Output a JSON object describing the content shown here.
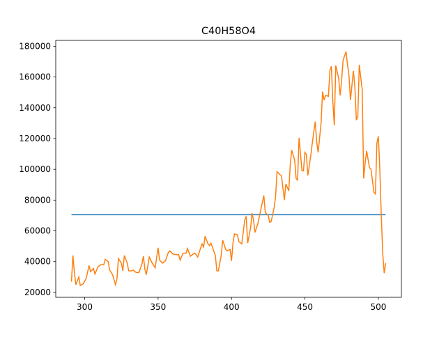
{
  "chart_data": {
    "type": "line",
    "title": "C40H58O4",
    "xlim": [
      280.3,
      515.7
    ],
    "xticks": [
      300,
      350,
      400,
      450,
      500
    ],
    "ylim": [
      16800,
      183800
    ],
    "yticks": [
      20000,
      40000,
      60000,
      80000,
      100000,
      120000,
      140000,
      160000,
      180000
    ],
    "grid": false,
    "series": [
      {
        "color": "#1f77b4",
        "x": [
          291,
          505
        ],
        "values": [
          70500,
          70500
        ]
      },
      {
        "color": "#ff7f0e",
        "x": [
          291,
          292,
          293,
          294,
          296,
          297,
          299,
          301,
          303,
          304,
          306,
          307,
          309,
          311,
          313,
          314,
          316,
          317,
          319,
          321,
          322,
          323,
          325,
          326,
          327,
          329,
          330,
          332,
          333,
          335,
          337,
          339,
          340,
          341,
          342,
          344,
          346,
          348,
          350,
          351,
          353,
          355,
          357,
          358,
          360,
          362,
          364,
          365,
          367,
          369,
          370,
          372,
          374,
          375,
          377,
          379,
          380,
          381,
          382,
          384,
          385,
          386,
          389,
          390,
          391,
          393,
          394,
          396,
          397,
          399,
          400,
          401,
          402,
          404,
          405,
          407,
          409,
          410,
          411,
          413,
          414,
          415,
          416,
          418,
          420,
          422,
          423,
          425,
          426,
          427,
          429,
          430,
          431,
          433,
          434,
          435,
          436,
          437,
          439,
          440,
          441,
          443,
          444,
          445,
          446,
          448,
          449,
          450,
          451,
          452,
          454,
          455,
          457,
          458,
          459,
          461,
          462,
          463,
          464,
          466,
          467,
          468,
          469,
          470,
          471,
          473,
          474,
          475,
          476,
          478,
          479,
          480,
          481,
          483,
          484,
          485,
          486,
          487,
          489,
          490,
          491,
          492,
          494,
          495,
          497,
          498,
          499,
          500,
          501,
          502,
          503,
          504,
          505
        ],
        "values": [
          27000,
          44000,
          33000,
          25000,
          30000,
          24500,
          25500,
          29000,
          37500,
          33500,
          35500,
          32000,
          36500,
          38000,
          38000,
          41500,
          40000,
          34500,
          31500,
          25000,
          29000,
          42000,
          39000,
          34000,
          44000,
          39000,
          34000,
          34000,
          34500,
          33000,
          33000,
          38500,
          43500,
          35000,
          31500,
          43000,
          39000,
          36000,
          49000,
          41000,
          39000,
          40500,
          46000,
          47000,
          45000,
          44500,
          44500,
          41000,
          45500,
          45500,
          48500,
          43500,
          45000,
          45500,
          43000,
          49000,
          51500,
          49500,
          56500,
          51500,
          50500,
          52000,
          44000,
          34000,
          34000,
          44000,
          54000,
          48000,
          47000,
          48000,
          40500,
          52000,
          58000,
          57500,
          53000,
          51500,
          67000,
          69500,
          52000,
          62000,
          71500,
          67000,
          59000,
          65000,
          74000,
          83000,
          72000,
          70000,
          65500,
          66000,
          75000,
          82000,
          98500,
          96500,
          96000,
          88000,
          80000,
          90500,
          86000,
          103000,
          112500,
          106000,
          94000,
          93000,
          120500,
          99000,
          99000,
          111000,
          109500,
          96000,
          109000,
          117000,
          131000,
          118000,
          111000,
          130000,
          150500,
          145000,
          148000,
          147500,
          164000,
          167000,
          144000,
          128500,
          167500,
          159000,
          148000,
          158000,
          171000,
          176500,
          168000,
          161000,
          145000,
          164000,
          154000,
          132000,
          134000,
          168000,
          152000,
          94000,
          104000,
          112000,
          101000,
          100000,
          85000,
          84000,
          117000,
          121500,
          100000,
          70000,
          45000,
          32500,
          39000
        ]
      }
    ]
  }
}
